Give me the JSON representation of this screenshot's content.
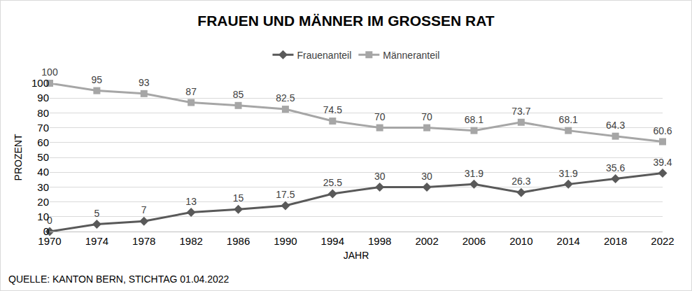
{
  "chart_data": {
    "type": "line",
    "title": "FRAUEN UND MÄNNER IM GROSSEN RAT",
    "x_label": "JAHR",
    "y_label": "PROZENT",
    "source": "QUELLE: KANTON BERN, STICHTAG 01.04.2022",
    "x": [
      1970,
      1974,
      1978,
      1982,
      1986,
      1990,
      1994,
      1998,
      2002,
      2006,
      2010,
      2014,
      2018,
      2022
    ],
    "series": [
      {
        "name": "Frauenanteil",
        "color": "#595959",
        "marker": "diamond",
        "values": [
          0,
          5,
          7,
          13,
          15,
          17.5,
          25.5,
          30,
          30,
          31.9,
          26.3,
          31.9,
          35.6,
          39.4
        ]
      },
      {
        "name": "Männeranteil",
        "color": "#a6a6a6",
        "marker": "square",
        "values": [
          100,
          95,
          93,
          87,
          85,
          82.5,
          74.5,
          70,
          70,
          68.1,
          73.7,
          68.1,
          64.3,
          60.6
        ]
      }
    ],
    "xlim": [
      1970,
      2022
    ],
    "xticks": [
      1970,
      1974,
      1978,
      1982,
      1986,
      1990,
      1994,
      1998,
      2002,
      2006,
      2010,
      2014,
      2018,
      2022
    ],
    "ylim": [
      0,
      100
    ],
    "yticks": [
      0,
      10,
      20,
      30,
      40,
      50,
      60,
      70,
      80,
      90,
      100
    ],
    "grid": true,
    "legend": "top",
    "data_labels": true
  }
}
